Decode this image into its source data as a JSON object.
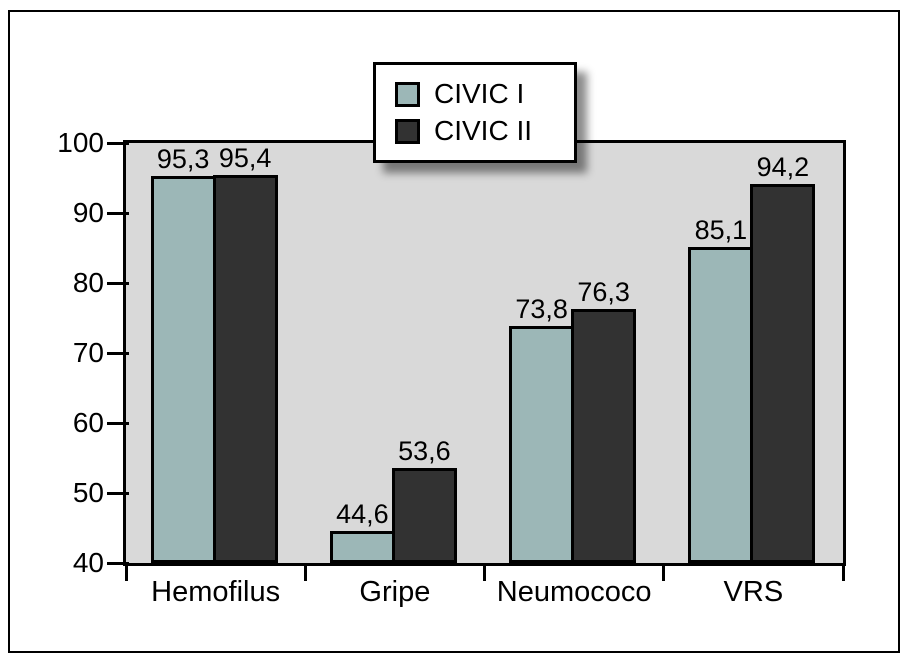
{
  "chart_data": {
    "type": "bar",
    "title": "",
    "xlabel": "",
    "ylabel": "",
    "categories": [
      "Hemofilus",
      "Gripe",
      "Neumococo",
      "VRS"
    ],
    "series": [
      {
        "name": "CIVIC I",
        "color": "#9cb7b7",
        "values": [
          95.3,
          44.6,
          73.8,
          85.1
        ],
        "value_labels": [
          "95,3",
          "44,6",
          "73,8",
          "85,1"
        ]
      },
      {
        "name": "CIVIC II",
        "color": "#323232",
        "values": [
          95.4,
          53.6,
          76.3,
          94.2
        ],
        "value_labels": [
          "95,4",
          "53,6",
          "76,3",
          "94,2"
        ]
      }
    ],
    "y_axis": {
      "min": 40,
      "max": 100,
      "step": 10,
      "tick_labels": [
        "40",
        "50",
        "60",
        "70",
        "80",
        "90",
        "100"
      ]
    },
    "legend": {
      "position": "top-center",
      "entries": [
        "CIVIC I",
        "CIVIC II"
      ]
    },
    "grid": false,
    "plot_background": "#d9d9d9",
    "bar_border_color": "#000000",
    "frame_border_color": "#000000"
  }
}
